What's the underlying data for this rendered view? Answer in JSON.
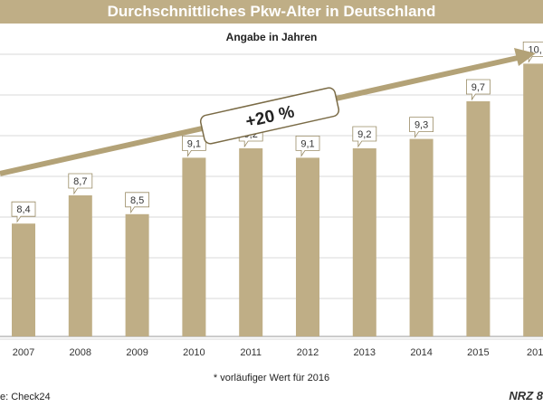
{
  "header": {
    "title": "Durchschnittliches Pkw-Alter in Deutschland",
    "subtitle": "Angabe in Jahren"
  },
  "colors": {
    "bar": "#bfae86",
    "title_bg": "#bfae86",
    "arrow": "#b3a277",
    "gridline": "#d9d9d9"
  },
  "trend_label": "+20 %",
  "footnote": "* vorläufiger Wert für 2016",
  "source": "e: Check24",
  "logo": "NRZ",
  "logo_tail": "8",
  "chart_data": {
    "type": "bar",
    "categories": [
      "2007",
      "2008",
      "2009",
      "2010",
      "2011",
      "2012",
      "2013",
      "2014",
      "2015",
      "201"
    ],
    "values": [
      8.4,
      8.7,
      8.5,
      9.1,
      9.2,
      9.1,
      9.2,
      9.3,
      9.7,
      10.1
    ],
    "data_labels": [
      "8,4",
      "8,7",
      "8,5",
      "9,1",
      "9,2",
      "9,1",
      "9,2",
      "9,3",
      "9,7",
      "10,"
    ],
    "ylim": [
      7.2,
      10.2
    ],
    "grid": true,
    "legend": "none"
  }
}
